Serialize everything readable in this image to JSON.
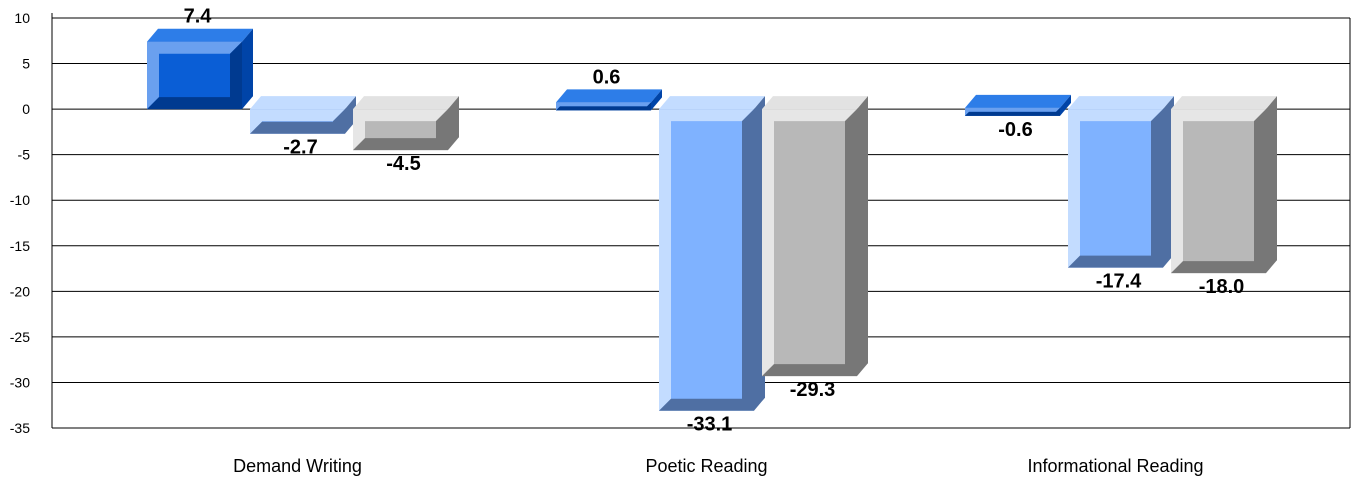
{
  "chart_data": {
    "type": "bar",
    "categories": [
      "Demand Writing",
      "Poetic Reading",
      "Informational Reading"
    ],
    "series": [
      {
        "values": [
          7.4,
          0.6,
          -0.6
        ],
        "labels": [
          "7.4",
          "0.6",
          "-0.6"
        ]
      },
      {
        "values": [
          -2.7,
          -33.1,
          -17.4
        ],
        "labels": [
          "-2.7",
          "-33.1",
          "-17.4"
        ]
      },
      {
        "values": [
          -4.5,
          -29.3,
          -18.0
        ],
        "labels": [
          "-4.5",
          "-29.3",
          "-18.0"
        ]
      }
    ],
    "yticks": [
      "10",
      "5",
      "0",
      "-5",
      "-10",
      "-15",
      "-20",
      "-25",
      "-30",
      "-35"
    ],
    "ylim": [
      -35,
      10
    ],
    "grid": true,
    "legend": "none",
    "colors": {
      "series": [
        {
          "front": "#0a5ed6",
          "top": "#2d7de8",
          "side": "#0044a8",
          "bevel_light": "#6aa0ef",
          "bevel_dark": "#003a90"
        },
        {
          "front": "#7fb2ff",
          "top": "#c3dcff",
          "side": "#4f6fa3",
          "bevel_light": "#c3dcff",
          "bevel_dark": "#4f6fa3"
        },
        {
          "front": "#b8b8b8",
          "top": "#e2e2e2",
          "side": "#777777",
          "bevel_light": "#e6e6e6",
          "bevel_dark": "#777777"
        }
      ],
      "gridline": "#000000",
      "axis": "#000000",
      "text": "#000000"
    }
  }
}
